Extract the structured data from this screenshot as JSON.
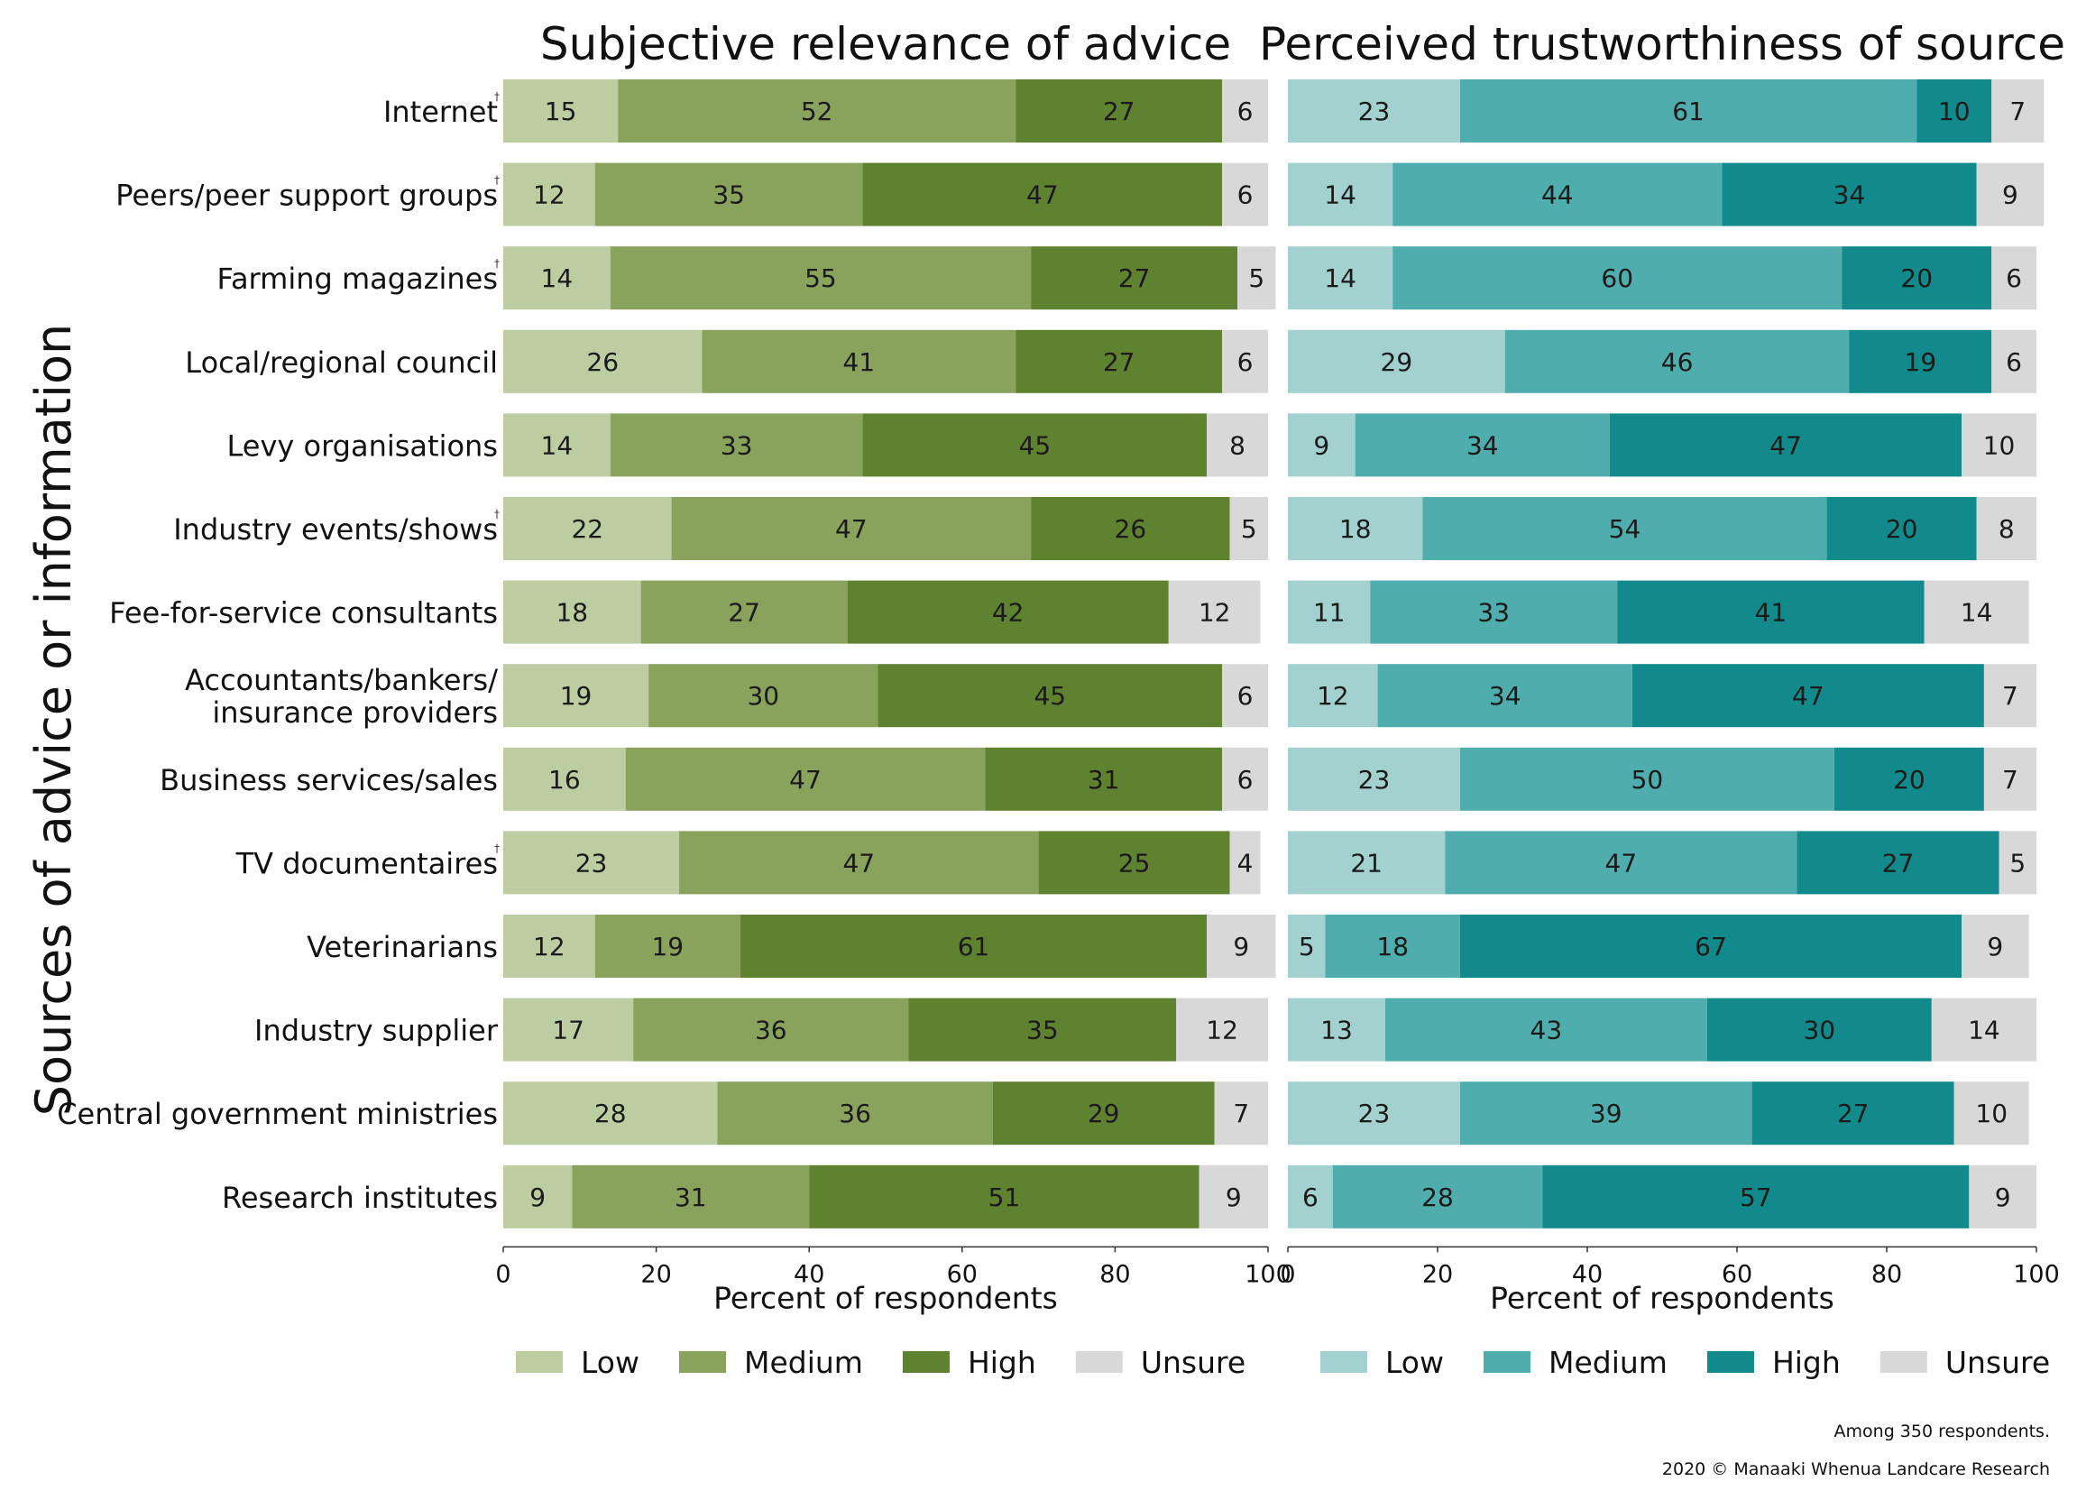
{
  "chart_data": {
    "type": "stacked-horizontal-bar",
    "ylabel": "Sources of advice or information",
    "categories": [
      "Internet",
      "Peers/peer support groups",
      "Farming magazines",
      "Local/regional council",
      "Levy organisations",
      "Industry events/shows",
      "Fee-for-service consultants",
      [
        "Accountants/bankers/",
        "insurance providers"
      ],
      "Business services/sales",
      "TV documentaires",
      "Veterinarians",
      "Industry supplier",
      "Central government ministries",
      "Research institutes"
    ],
    "dagger_flags": [
      true,
      true,
      true,
      false,
      false,
      true,
      false,
      false,
      false,
      true,
      false,
      false,
      false,
      false
    ],
    "dagger_symbol": "†",
    "panels": [
      {
        "title": "Subjective relevance of advice",
        "xlabel": "Percent of respondents",
        "xlim": [
          0,
          100
        ],
        "xticks": [
          0,
          20,
          40,
          60,
          80,
          100
        ],
        "legend": [
          "Low",
          "Medium",
          "High",
          "Unsure"
        ],
        "colors": [
          "#bccda2",
          "#89a35d",
          "#5f8230",
          "#d8d8d8"
        ],
        "series": [
          {
            "name": "Low",
            "values": [
              15,
              12,
              14,
              26,
              14,
              22,
              18,
              19,
              16,
              23,
              12,
              17,
              28,
              9
            ]
          },
          {
            "name": "Medium",
            "values": [
              52,
              35,
              55,
              41,
              33,
              47,
              27,
              30,
              47,
              47,
              19,
              36,
              36,
              31
            ]
          },
          {
            "name": "High",
            "values": [
              27,
              47,
              27,
              27,
              45,
              26,
              42,
              45,
              31,
              25,
              61,
              35,
              29,
              51
            ]
          },
          {
            "name": "Unsure",
            "values": [
              6,
              6,
              5,
              6,
              8,
              5,
              12,
              6,
              6,
              4,
              9,
              12,
              7,
              9
            ]
          }
        ]
      },
      {
        "title": "Perceived trustworthiness of source",
        "xlabel": "Percent of respondents",
        "xlim": [
          0,
          100
        ],
        "xticks": [
          0,
          20,
          40,
          60,
          80,
          100
        ],
        "legend": [
          "Low",
          "Medium",
          "High",
          "Unsure"
        ],
        "colors": [
          "#a2d1d0",
          "#50adad",
          "#12898a",
          "#d8d8d8"
        ],
        "series": [
          {
            "name": "Low",
            "values": [
              23,
              14,
              14,
              29,
              9,
              18,
              11,
              12,
              23,
              21,
              5,
              13,
              23,
              6
            ]
          },
          {
            "name": "Medium",
            "values": [
              61,
              44,
              60,
              46,
              34,
              54,
              33,
              34,
              50,
              47,
              18,
              43,
              39,
              28
            ]
          },
          {
            "name": "High",
            "values": [
              10,
              34,
              20,
              19,
              47,
              20,
              41,
              47,
              20,
              27,
              67,
              30,
              27,
              57
            ]
          },
          {
            "name": "Unsure",
            "values": [
              7,
              9,
              6,
              6,
              10,
              8,
              14,
              7,
              7,
              5,
              9,
              14,
              10,
              9
            ]
          }
        ]
      }
    ]
  },
  "footnotes": {
    "respondents": "Among 350 respondents.",
    "copyright": "2020 © Manaaki Whenua Landcare Research"
  }
}
